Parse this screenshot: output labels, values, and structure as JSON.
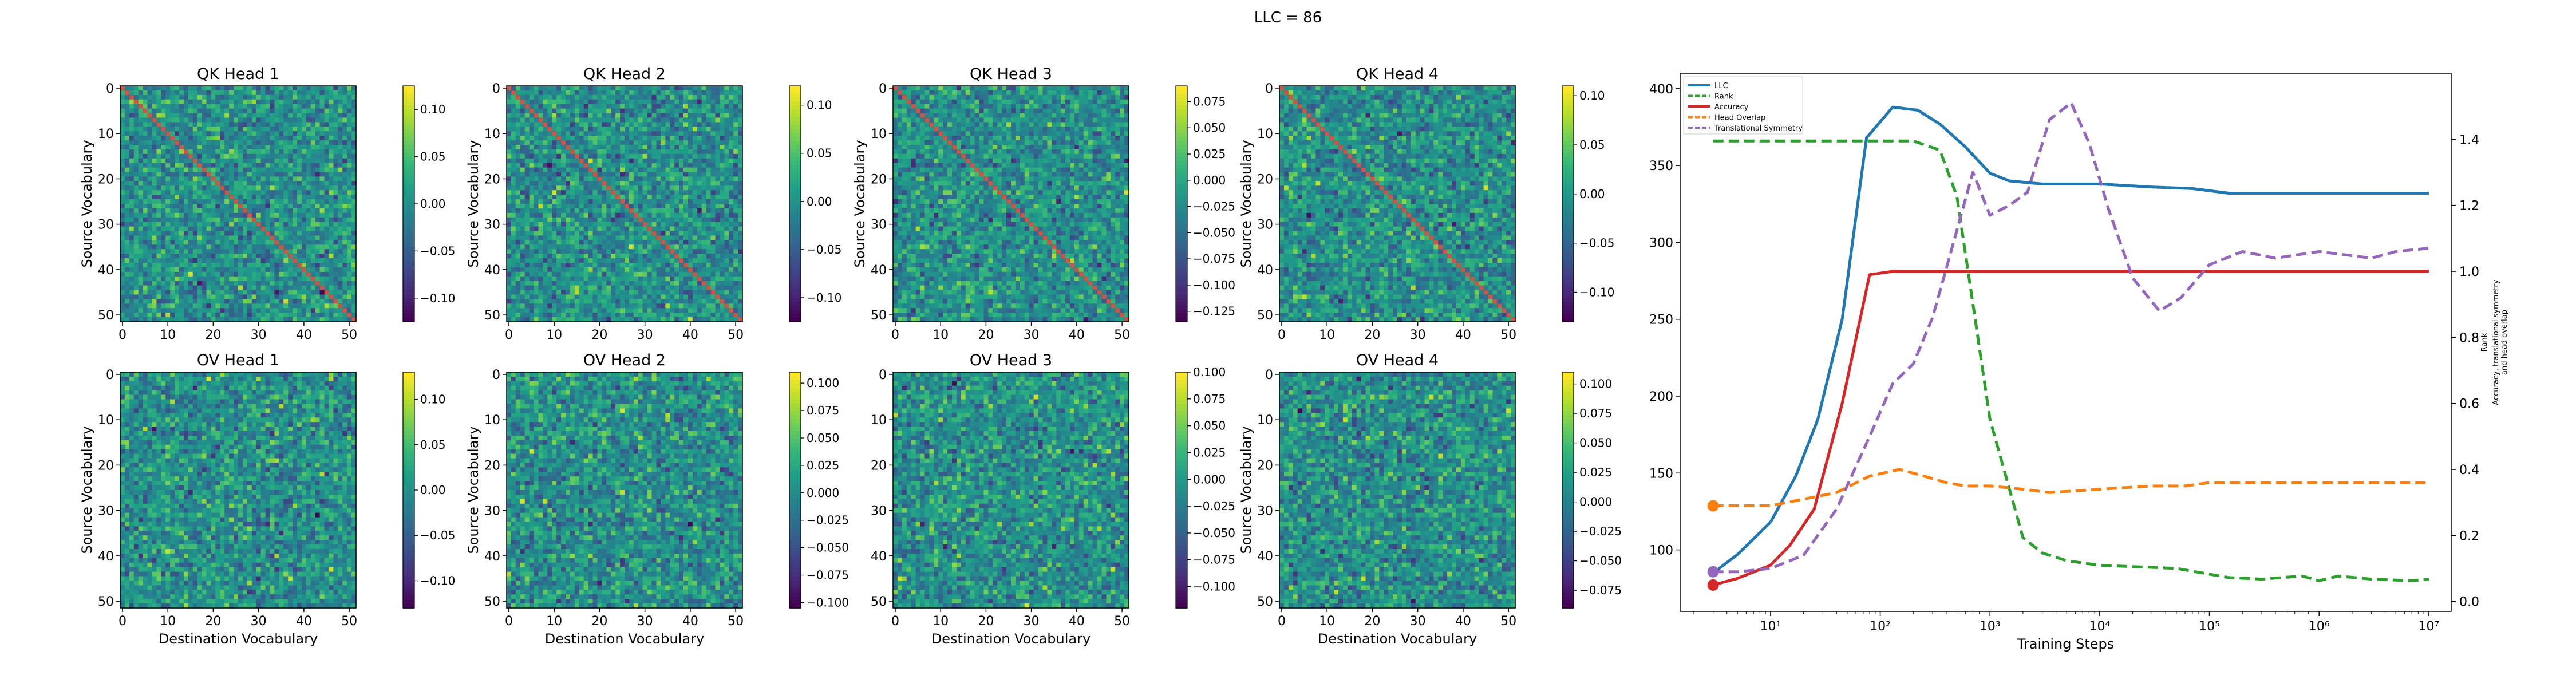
{
  "figure": {
    "suptitle": "LLC = 86"
  },
  "colors": {
    "llc": "#1f77b4",
    "rank": "#2ca02c",
    "accuracy": "#d62728",
    "head_overlap": "#ff7f0e",
    "translational_symmetry": "#9467bd",
    "diagonal": "#c0392b"
  },
  "chart_data": [
    {
      "type": "heatmap",
      "title": "QK Head 1",
      "xlabel": "",
      "ylabel": "Source Vocabulary",
      "xticks": [
        "0",
        "10",
        "20",
        "30",
        "40",
        "50"
      ],
      "yticks": [
        "0",
        "10",
        "20",
        "30",
        "40",
        "50"
      ],
      "size": 52,
      "colormap": "viridis",
      "diagonal": true,
      "vmin": -0.125,
      "vmax": 0.125,
      "colorbar_ticks": [
        "0.10",
        "0.05",
        "0.00",
        "−0.05",
        "−0.10"
      ]
    },
    {
      "type": "heatmap",
      "title": "QK Head 2",
      "xlabel": "",
      "ylabel": "Source Vocabulary",
      "xticks": [
        "0",
        "10",
        "20",
        "30",
        "40",
        "50"
      ],
      "yticks": [
        "0",
        "10",
        "20",
        "30",
        "40",
        "50"
      ],
      "size": 52,
      "colormap": "viridis",
      "diagonal": true,
      "vmin": -0.125,
      "vmax": 0.12,
      "colorbar_ticks": [
        "0.10",
        "0.05",
        "0.00",
        "−0.05",
        "−0.10"
      ]
    },
    {
      "type": "heatmap",
      "title": "QK Head 3",
      "xlabel": "",
      "ylabel": "Source Vocabulary",
      "xticks": [
        "0",
        "10",
        "20",
        "30",
        "40",
        "50"
      ],
      "yticks": [
        "0",
        "10",
        "20",
        "30",
        "40",
        "50"
      ],
      "size": 52,
      "colormap": "viridis",
      "diagonal": true,
      "vmin": -0.135,
      "vmax": 0.09,
      "colorbar_ticks": [
        "0.075",
        "0.050",
        "0.025",
        "0.000",
        "−0.025",
        "−0.050",
        "−0.075",
        "−0.100",
        "−0.125"
      ]
    },
    {
      "type": "heatmap",
      "title": "QK Head 4",
      "xlabel": "",
      "ylabel": "Source Vocabulary",
      "xticks": [
        "0",
        "10",
        "20",
        "30",
        "40",
        "50"
      ],
      "yticks": [
        "0",
        "10",
        "20",
        "30",
        "40",
        "50"
      ],
      "size": 52,
      "colormap": "viridis",
      "diagonal": true,
      "vmin": -0.13,
      "vmax": 0.11,
      "colorbar_ticks": [
        "0.10",
        "0.05",
        "0.00",
        "−0.05",
        "−0.10"
      ]
    },
    {
      "type": "heatmap",
      "title": "OV Head 1",
      "xlabel": "Destination Vocabulary",
      "ylabel": "Source Vocabulary",
      "xticks": [
        "0",
        "10",
        "20",
        "30",
        "40",
        "50"
      ],
      "yticks": [
        "0",
        "10",
        "20",
        "30",
        "40",
        "50"
      ],
      "size": 52,
      "colormap": "viridis",
      "diagonal": false,
      "vmin": -0.13,
      "vmax": 0.13,
      "colorbar_ticks": [
        "0.10",
        "0.05",
        "0.00",
        "−0.05",
        "−0.10"
      ]
    },
    {
      "type": "heatmap",
      "title": "OV Head 2",
      "xlabel": "Destination Vocabulary",
      "ylabel": "Source Vocabulary",
      "xticks": [
        "0",
        "10",
        "20",
        "30",
        "40",
        "50"
      ],
      "yticks": [
        "0",
        "10",
        "20",
        "30",
        "40",
        "50"
      ],
      "size": 52,
      "colormap": "viridis",
      "diagonal": false,
      "vmin": -0.105,
      "vmax": 0.11,
      "colorbar_ticks": [
        "0.100",
        "0.075",
        "0.050",
        "0.025",
        "0.000",
        "−0.025",
        "−0.050",
        "−0.075",
        "−0.100"
      ]
    },
    {
      "type": "heatmap",
      "title": "OV Head 3",
      "xlabel": "Destination Vocabulary",
      "ylabel": "",
      "xticks": [
        "0",
        "10",
        "20",
        "30",
        "40",
        "50"
      ],
      "yticks": [
        "0",
        "10",
        "20",
        "30",
        "40",
        "50"
      ],
      "size": 52,
      "colormap": "viridis",
      "diagonal": false,
      "vmin": -0.12,
      "vmax": 0.1,
      "colorbar_ticks": [
        "0.100",
        "0.075",
        "0.050",
        "0.025",
        "0.000",
        "−0.025",
        "−0.050",
        "−0.075",
        "−0.100"
      ]
    },
    {
      "type": "heatmap",
      "title": "OV Head 4",
      "xlabel": "Destination Vocabulary",
      "ylabel": "Source Vocabulary",
      "xticks": [
        "0",
        "10",
        "20",
        "30",
        "40",
        "50"
      ],
      "yticks": [
        "0",
        "10",
        "20",
        "30",
        "40",
        "50"
      ],
      "size": 52,
      "colormap": "viridis",
      "diagonal": false,
      "vmin": -0.09,
      "vmax": 0.11,
      "colorbar_ticks": [
        "0.100",
        "0.075",
        "0.050",
        "0.025",
        "0.000",
        "−0.025",
        "−0.050",
        "−0.075"
      ]
    },
    {
      "type": "line",
      "xlabel": "Training Steps",
      "x_scale": "log",
      "xlim": [
        1.5,
        16000000
      ],
      "xticks": [
        {
          "value": 10,
          "label": "10¹"
        },
        {
          "value": 100,
          "label": "10²"
        },
        {
          "value": 1000,
          "label": "10³"
        },
        {
          "value": 10000,
          "label": "10⁴"
        },
        {
          "value": 100000,
          "label": "10⁵"
        },
        {
          "value": 1000000,
          "label": "10⁶"
        },
        {
          "value": 10000000,
          "label": "10⁷"
        }
      ],
      "ylim_left": [
        60,
        410
      ],
      "yticks_left": [
        100,
        150,
        200,
        250,
        300,
        350,
        400
      ],
      "ylim_right": [
        -0.03,
        1.6
      ],
      "yticks_right": [
        0.0,
        0.2,
        0.4,
        0.6,
        0.8,
        1.0,
        1.2,
        1.4
      ],
      "ylabel_right": [
        "Accuracy, translational symmetry",
        "and head overlap"
      ],
      "ylabel_right_side": "Rank",
      "legend_position": "top-left",
      "series": [
        {
          "name": "LLC",
          "axis": "left",
          "style": "solid",
          "color": "#1f77b4",
          "start_marker": false,
          "x": [
            3,
            5,
            10,
            17,
            27,
            45,
            75,
            130,
            220,
            350,
            600,
            1000,
            1500,
            3000,
            10000,
            30000,
            70000,
            150000,
            400000,
            1000000,
            3000000,
            10000000
          ],
          "y": [
            85,
            97,
            118,
            148,
            185,
            250,
            368,
            388,
            386,
            377,
            362,
            345,
            340,
            338,
            338,
            336,
            335,
            332,
            332,
            332,
            332,
            332
          ]
        },
        {
          "name": "Rank",
          "axis": "left",
          "style": "dashed",
          "color": "#2ca02c",
          "start_marker": false,
          "x": [
            3,
            10,
            50,
            100,
            200,
            350,
            500,
            700,
            1000,
            2000,
            3000,
            5000,
            10000,
            50000,
            150000,
            300000,
            700000,
            1000000,
            1500000,
            3000000,
            7000000,
            10000000
          ],
          "y": [
            366,
            366,
            366,
            366,
            366,
            360,
            330,
            260,
            185,
            108,
            98,
            93,
            90,
            88,
            82,
            81,
            83,
            80,
            83,
            81,
            80,
            81
          ]
        },
        {
          "name": "Accuracy",
          "axis": "right",
          "style": "solid",
          "color": "#d62728",
          "start_marker": true,
          "x": [
            3,
            5,
            10,
            15,
            25,
            45,
            80,
            130,
            300,
            1000,
            10000,
            100000,
            1000000,
            10000000
          ],
          "y": [
            0.05,
            0.07,
            0.11,
            0.17,
            0.28,
            0.6,
            0.99,
            1.0,
            1.0,
            1.0,
            1.0,
            1.0,
            1.0,
            1.0
          ]
        },
        {
          "name": "Head Overlap",
          "axis": "right",
          "style": "dashed",
          "color": "#ff7f0e",
          "start_marker": true,
          "x": [
            3,
            5,
            10,
            20,
            40,
            80,
            150,
            250,
            400,
            600,
            1000,
            2000,
            3500,
            10000,
            30000,
            60000,
            100000,
            300000,
            1000000,
            3000000,
            10000000
          ],
          "y": [
            0.29,
            0.29,
            0.29,
            0.31,
            0.33,
            0.38,
            0.4,
            0.38,
            0.36,
            0.35,
            0.35,
            0.34,
            0.33,
            0.34,
            0.35,
            0.35,
            0.36,
            0.36,
            0.36,
            0.36,
            0.36
          ]
        },
        {
          "name": "Translational Symmetry",
          "axis": "right",
          "style": "dashed",
          "color": "#9467bd",
          "start_marker": true,
          "x": [
            3,
            5,
            10,
            20,
            40,
            80,
            130,
            200,
            300,
            450,
            700,
            1000,
            1500,
            2200,
            3500,
            5500,
            8000,
            12000,
            20000,
            35000,
            55000,
            100000,
            200000,
            400000,
            1000000,
            3000000,
            5000000,
            10000000
          ],
          "y": [
            0.09,
            0.09,
            0.1,
            0.14,
            0.28,
            0.5,
            0.66,
            0.72,
            0.86,
            1.07,
            1.3,
            1.17,
            1.2,
            1.24,
            1.46,
            1.51,
            1.39,
            1.19,
            0.98,
            0.88,
            0.92,
            1.02,
            1.06,
            1.04,
            1.06,
            1.04,
            1.06,
            1.07
          ]
        }
      ]
    }
  ]
}
